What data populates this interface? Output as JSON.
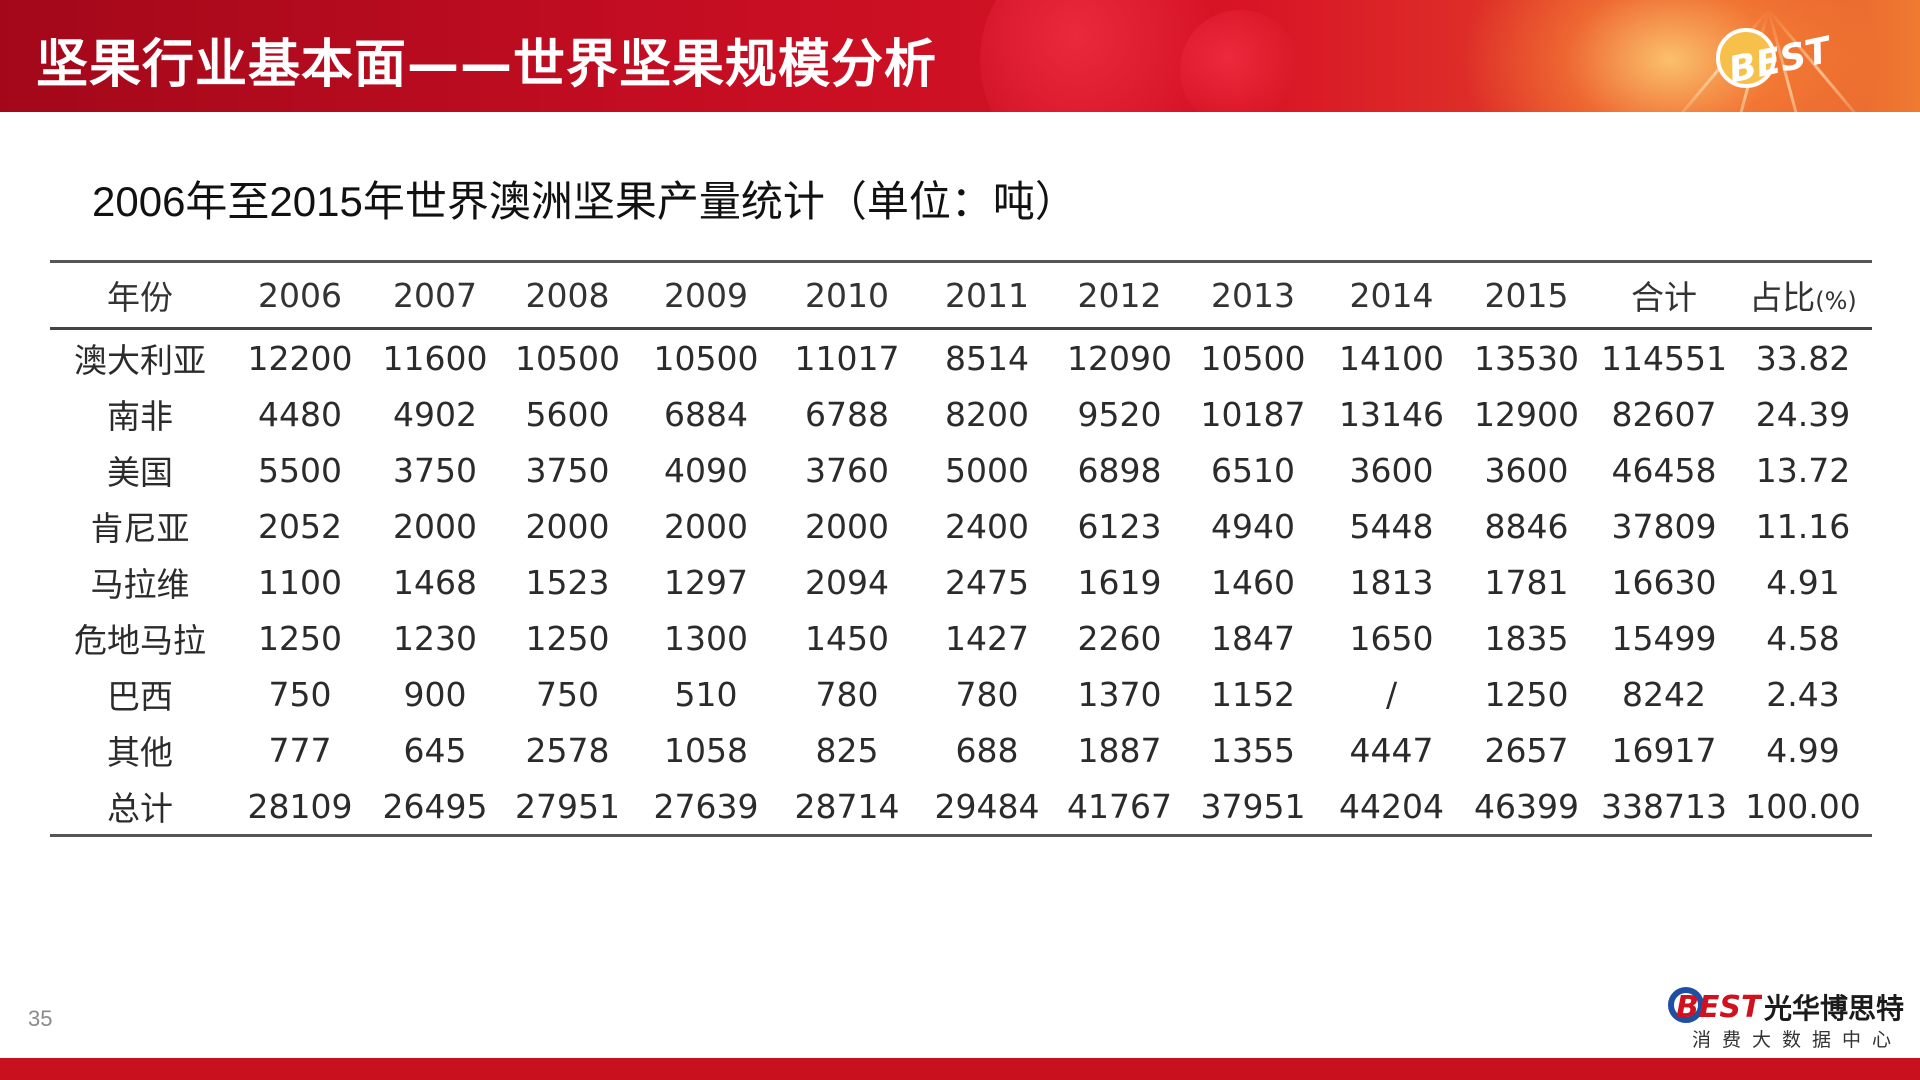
{
  "header": {
    "title": "坚果行业基本面——世界坚果规模分析",
    "badge_text": "BEST"
  },
  "subtitle": "2006年至2015年世界澳洲坚果产量统计（单位：吨）",
  "table": {
    "headers": [
      "年份",
      "2006",
      "2007",
      "2008",
      "2009",
      "2010",
      "2011",
      "2012",
      "2013",
      "2014",
      "2015",
      "合计",
      "占比"
    ],
    "pct_unit": "(%)",
    "rows": [
      [
        "澳大利亚",
        "12200",
        "11600",
        "10500",
        "10500",
        "11017",
        "8514",
        "12090",
        "10500",
        "14100",
        "13530",
        "114551",
        "33.82"
      ],
      [
        "南非",
        "4480",
        "4902",
        "5600",
        "6884",
        "6788",
        "8200",
        "9520",
        "10187",
        "13146",
        "12900",
        "82607",
        "24.39"
      ],
      [
        "美国",
        "5500",
        "3750",
        "3750",
        "4090",
        "3760",
        "5000",
        "6898",
        "6510",
        "3600",
        "3600",
        "46458",
        "13.72"
      ],
      [
        "肯尼亚",
        "2052",
        "2000",
        "2000",
        "2000",
        "2000",
        "2400",
        "6123",
        "4940",
        "5448",
        "8846",
        "37809",
        "11.16"
      ],
      [
        "马拉维",
        "1100",
        "1468",
        "1523",
        "1297",
        "2094",
        "2475",
        "1619",
        "1460",
        "1813",
        "1781",
        "16630",
        "4.91"
      ],
      [
        "危地马拉",
        "1250",
        "1230",
        "1250",
        "1300",
        "1450",
        "1427",
        "2260",
        "1847",
        "1650",
        "1835",
        "15499",
        "4.58"
      ],
      [
        "巴西",
        "750",
        "900",
        "750",
        "510",
        "780",
        "780",
        "1370",
        "1152",
        "/",
        "1250",
        "8242",
        "2.43"
      ],
      [
        "其他",
        "777",
        "645",
        "2578",
        "1058",
        "825",
        "688",
        "1887",
        "1355",
        "4447",
        "2657",
        "16917",
        "4.99"
      ],
      [
        "总计",
        "28109",
        "26495",
        "27951",
        "27639",
        "28714",
        "29484",
        "41767",
        "37951",
        "44204",
        "46399",
        "338713",
        "100.00"
      ]
    ]
  },
  "footer": {
    "page_number": "35",
    "logo_mark": "BEST",
    "brand_cn": "光华博思特",
    "brand_sub": "消费大数据中心"
  },
  "colors": {
    "banner_red": "#c40d22",
    "banner_orange": "#ef7a31",
    "bottom_bar": "#c8101f",
    "logo_blue": "#1f4fa3",
    "logo_red": "#d0121f"
  }
}
